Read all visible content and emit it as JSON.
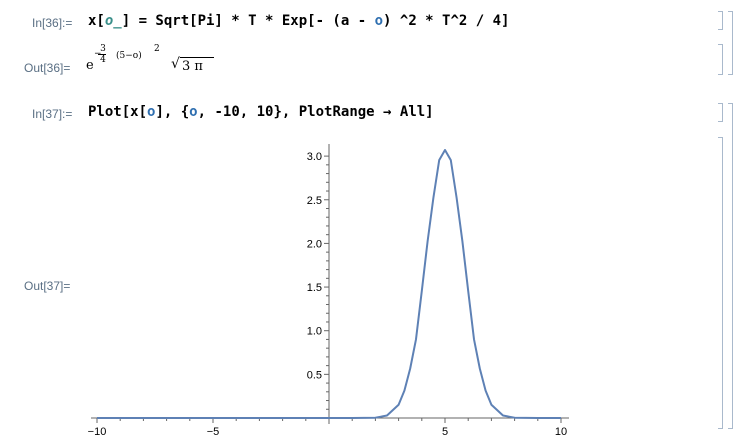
{
  "cells": {
    "in36": {
      "label": "In[36]:=",
      "code": {
        "p1": "x[",
        "pattern": "o_",
        "p2": "] = Sqrt[Pi] * T * Exp[- (a - ",
        "var": "o",
        "p3": ") ^2 * T^2 / 4]"
      }
    },
    "out36": {
      "label": "Out[36]=",
      "e": "e",
      "minus": "−",
      "frac_num": "3",
      "frac_den": "4",
      "base": "(5−o)",
      "power": "2",
      "sqrt_sign": "√",
      "radicand": "3 π"
    },
    "in37": {
      "label": "In[37]:=",
      "code": {
        "p1": "Plot[x[",
        "var1": "o",
        "p2": "], {",
        "var2": "o",
        "p3": ", -10, 10}, PlotRange → All]"
      }
    },
    "out37": {
      "label": "Out[37]="
    }
  },
  "colors": {
    "curve": "#5e81b5",
    "label": "#5a6f84",
    "bracket": "#a9b9cc",
    "variable": "#2f6fb0"
  },
  "chart_data": {
    "type": "line",
    "title": "",
    "xlabel": "",
    "ylabel": "",
    "xlim": [
      -10,
      10
    ],
    "ylim": [
      0,
      3.07
    ],
    "x_ticks": [
      "−10",
      "−5",
      "5",
      "10"
    ],
    "x_tick_values": [
      -10,
      -5,
      5,
      10
    ],
    "y_ticks": [
      "0.5",
      "1.0",
      "1.5",
      "2.0",
      "2.5",
      "3.0"
    ],
    "y_tick_values": [
      0.5,
      1.0,
      1.5,
      2.0,
      2.5,
      3.0
    ],
    "series": [
      {
        "x": [
          -10,
          -2,
          0,
          1,
          2,
          2.5,
          3,
          3.25,
          3.5,
          3.75,
          4,
          4.25,
          4.5,
          4.75,
          5,
          5.25,
          5.5,
          5.75,
          6,
          6.25,
          6.5,
          6.75,
          7,
          7.5,
          8,
          9,
          10
        ],
        "y": [
          0,
          0,
          0,
          0,
          0.00358,
          0.0283,
          0.152,
          0.313,
          0.567,
          0.902,
          1.455,
          2.024,
          2.523,
          2.954,
          3.07,
          2.954,
          2.523,
          2.024,
          1.455,
          0.902,
          0.567,
          0.313,
          0.152,
          0.0283,
          0.00358,
          0,
          0
        ]
      }
    ]
  }
}
